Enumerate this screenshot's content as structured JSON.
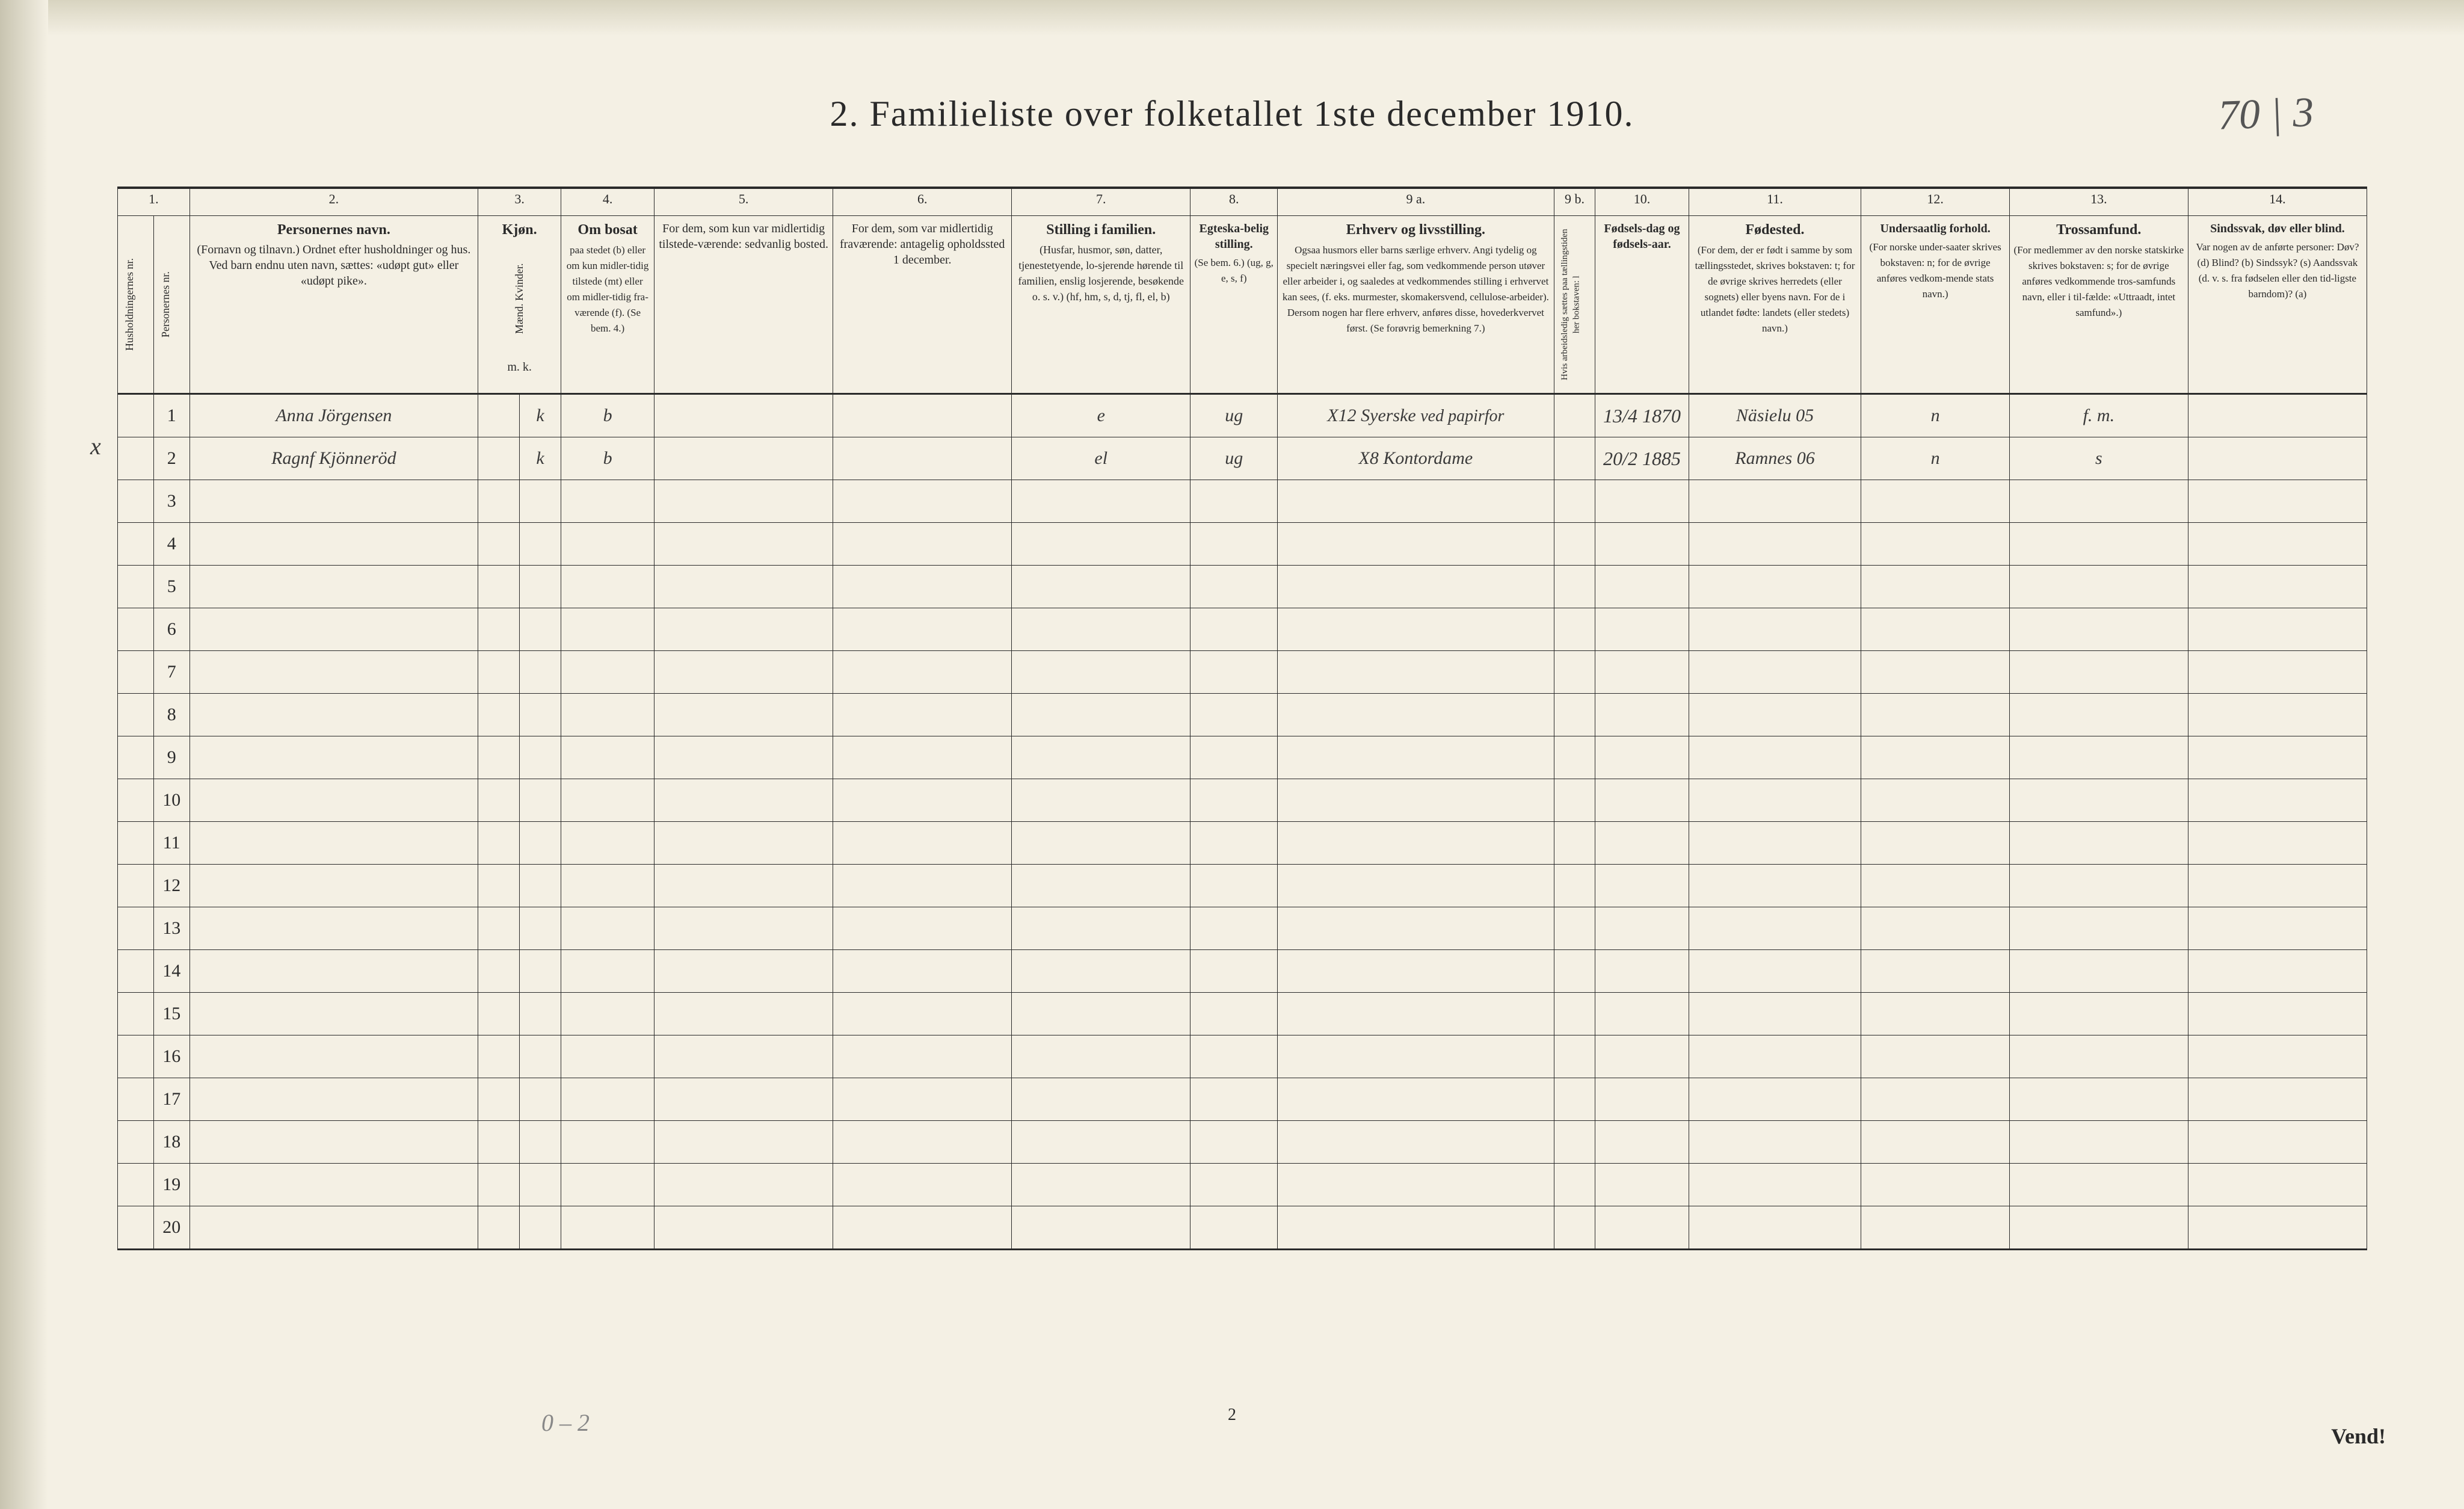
{
  "title": "2.   Familieliste over folketallet 1ste december 1910.",
  "top_right_note": "70 | 3",
  "page_number_bottom": "2",
  "vend_text": "Vend!",
  "pencil_note": "0 – 2",
  "colors": {
    "paper": "#f4f0e4",
    "ink": "#2a2a2a",
    "handwriting": "#3a3a3a",
    "pencil": "#888888",
    "background": "#1a1a1a"
  },
  "column_numbers": [
    "1.",
    "2.",
    "3.",
    "4.",
    "5.",
    "6.",
    "7.",
    "8.",
    "9 a.",
    "9 b.",
    "10.",
    "11.",
    "12.",
    "13.",
    "14."
  ],
  "headers": {
    "c1a": "Husholdningernes nr.",
    "c1b": "Personernes nr.",
    "c2_title": "Personernes navn.",
    "c2_body": "(Fornavn og tilnavn.)\nOrdnet efter husholdninger og hus.\nVed barn endnu uten navn, sættes: «udøpt gut»\neller «udøpt pike».",
    "c3_title": "Kjøn.",
    "c3_sub": "Mænd.   Kvinder.",
    "c3_foot": "m.   k.",
    "c4_title": "Om bosat",
    "c4_body": "paa stedet (b) eller om kun midler-tidig tilstede (mt) eller om midler-tidig fra-værende (f). (Se bem. 4.)",
    "c5_body": "For dem, som kun var midlertidig tilstede-værende:\nsedvanlig bosted.",
    "c6_body": "For dem, som var midlertidig fraværende:\nantagelig opholdssted 1 december.",
    "c7_title": "Stilling i familien.",
    "c7_body": "(Husfar, husmor, søn, datter, tjenestetyende, lo-sjerende hørende til familien, enslig losjerende, besøkende o. s. v.)\n(hf, hm, s, d, tj, fl, el, b)",
    "c8_title": "Egteska-belig stilling.",
    "c8_body": "(Se bem. 6.)\n(ug, g, e, s, f)",
    "c9a_title": "Erhverv og livsstilling.",
    "c9a_body": "Ogsaa husmors eller barns særlige erhverv. Angi tydelig og specielt næringsvei eller fag, som vedkommende person utøver eller arbeider i, og saaledes at vedkommendes stilling i erhvervet kan sees, (f. eks. murmester, skomakersvend, cellulose-arbeider). Dersom nogen har flere erhverv, anføres disse, hovederkvervet først. (Se forøvrig bemerkning 7.)",
    "c9b": "Hvis arbeidsledig sættes paa tællingstiden her bokstaven: l",
    "c10_title": "Fødsels-dag og fødsels-aar.",
    "c11_title": "Fødested.",
    "c11_body": "(For dem, der er født i samme by som tællingsstedet, skrives bokstaven: t; for de øvrige skrives herredets (eller sognets) eller byens navn. For de i utlandet fødte: landets (eller stedets) navn.)",
    "c12_title": "Undersaatlig forhold.",
    "c12_body": "(For norske under-saater skrives bokstaven: n; for de øvrige anføres vedkom-mende stats navn.)",
    "c13_title": "Trossamfund.",
    "c13_body": "(For medlemmer av den norske statskirke skrives bokstaven: s; for de øvrige anføres vedkommende tros-samfunds navn, eller i til-fælde: «Uttraadt, intet samfund».)",
    "c14_title": "Sindssvak, døv eller blind.",
    "c14_body": "Var nogen av de anførte personer:\nDøv?         (d)\nBlind?        (b)\nSindssyk?  (s)\nAandssvak (d. v. s. fra fødselen eller den tid-ligste barndom)? (a)"
  },
  "rows": [
    {
      "num": "1",
      "name": "Anna Jörgensen",
      "mk": "k",
      "bosat": "b",
      "col5": "",
      "col6": "",
      "stilling": "e",
      "egte": "ug",
      "erhverv": "X12  Syerske",
      "erhverv2": "ved papirfor",
      "fodsel": "13/4 1870",
      "fodested": "Näsielu 05",
      "under": "n",
      "tros": "f. m."
    },
    {
      "num": "2",
      "margin_x": "x",
      "name": "Ragnf Kjönneröd",
      "mk": "k",
      "bosat": "b",
      "col5": "",
      "col6": "",
      "stilling": "el",
      "egte": "ug",
      "erhverv": "X8 Kontordame",
      "erhverv2": "",
      "fodsel": "20/2 1885",
      "fodested": "Ramnes 06",
      "under": "n",
      "tros": "s"
    }
  ],
  "empty_row_numbers": [
    "3",
    "4",
    "5",
    "6",
    "7",
    "8",
    "9",
    "10",
    "11",
    "12",
    "13",
    "14",
    "15",
    "16",
    "17",
    "18",
    "19",
    "20"
  ]
}
